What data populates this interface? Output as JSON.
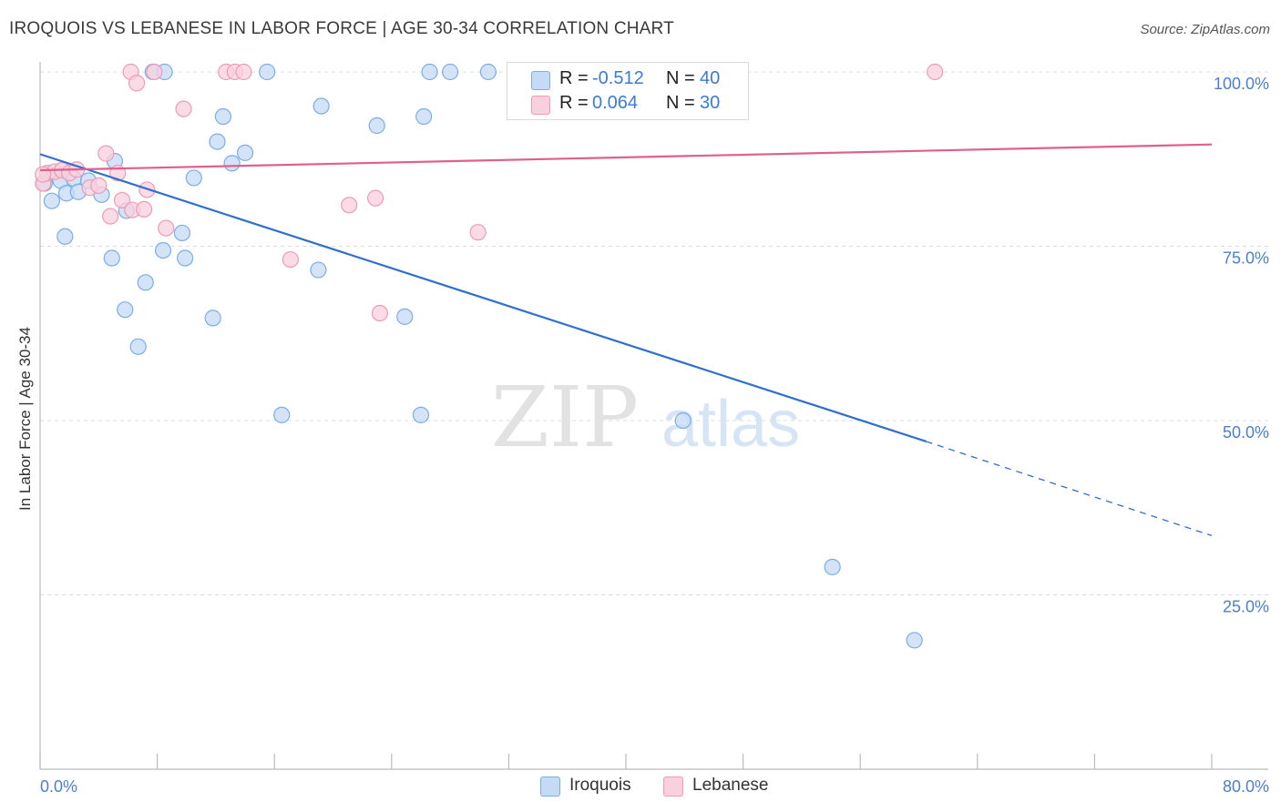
{
  "title": "IROQUOIS VS LEBANESE IN LABOR FORCE | AGE 30-34 CORRELATION CHART",
  "source": "Source: ZipAtlas.com",
  "watermark": {
    "zip": "ZIP",
    "atlas": "atlas"
  },
  "legend": {
    "rows": [
      {
        "r_label": "R =",
        "r_value": "-0.512",
        "n_label": "N =",
        "n_value": "40"
      },
      {
        "r_label": "R =",
        "r_value": "0.064",
        "n_label": "N =",
        "n_value": "30"
      }
    ]
  },
  "chart_data": {
    "type": "scatter",
    "title": "IROQUOIS VS LEBANESE IN LABOR FORCE | AGE 30-34 CORRELATION CHART",
    "xlabel": "",
    "ylabel": "In Labor Force | Age 30-34",
    "xlim": [
      0,
      80
    ],
    "ylim": [
      0,
      103.5
    ],
    "x_tick_labels": [
      "0.0%",
      "80.0%"
    ],
    "y_ticks": [
      25,
      50,
      75,
      100
    ],
    "y_tick_labels": [
      "25.0%",
      "50.0%",
      "75.0%",
      "100.0%"
    ],
    "series": [
      {
        "name": "Iroquois",
        "color": "#7aaee8",
        "fill": "#c5daf5",
        "trend_color": "#2f6fd0",
        "r": -0.512,
        "n": 40,
        "trend": {
          "x0": 0,
          "y0": 88.2,
          "x1": 60.5,
          "y1": 47.0,
          "x_dash_end": 80,
          "y_dash_end": 33.5
        },
        "points": [
          [
            0.3,
            84.0
          ],
          [
            0.8,
            81.5
          ],
          [
            1.4,
            84.4
          ],
          [
            1.8,
            82.6
          ],
          [
            2.3,
            84.7
          ],
          [
            2.6,
            82.8
          ],
          [
            3.3,
            84.4
          ],
          [
            4.2,
            82.4
          ],
          [
            5.1,
            87.2
          ],
          [
            5.9,
            80.1
          ],
          [
            1.7,
            76.4
          ],
          [
            4.9,
            73.3
          ],
          [
            8.4,
            74.4
          ],
          [
            9.7,
            76.9
          ],
          [
            9.9,
            73.3
          ],
          [
            7.2,
            69.8
          ],
          [
            5.8,
            65.9
          ],
          [
            11.8,
            64.7
          ],
          [
            6.7,
            60.6
          ],
          [
            7.7,
            100.0
          ],
          [
            8.5,
            100.0
          ],
          [
            15.5,
            100.0
          ],
          [
            26.6,
            100.0
          ],
          [
            28.0,
            100.0
          ],
          [
            30.6,
            100.0
          ],
          [
            12.5,
            93.6
          ],
          [
            19.2,
            95.1
          ],
          [
            23.0,
            92.3
          ],
          [
            26.2,
            93.6
          ],
          [
            12.1,
            90.0
          ],
          [
            14.0,
            88.4
          ],
          [
            13.1,
            86.9
          ],
          [
            10.5,
            84.8
          ],
          [
            19.0,
            71.6
          ],
          [
            24.9,
            64.9
          ],
          [
            16.5,
            50.8
          ],
          [
            26.0,
            50.8
          ],
          [
            43.9,
            50.0
          ],
          [
            54.1,
            29.0
          ],
          [
            59.7,
            18.5
          ]
        ]
      },
      {
        "name": "Lebanese",
        "color": "#f09ab5",
        "fill": "#f9d0dd",
        "trend_color": "#e0608a",
        "r": 0.064,
        "n": 30,
        "trend": {
          "x0": 0,
          "y0": 85.9,
          "x1": 80,
          "y1": 89.6
        },
        "points": [
          [
            0.2,
            84.0
          ],
          [
            0.5,
            85.5
          ],
          [
            1.0,
            85.7
          ],
          [
            1.5,
            85.9
          ],
          [
            2.0,
            85.5
          ],
          [
            2.5,
            86.0
          ],
          [
            3.4,
            83.4
          ],
          [
            4.0,
            83.7
          ],
          [
            4.5,
            88.3
          ],
          [
            5.3,
            85.5
          ],
          [
            5.6,
            81.6
          ],
          [
            6.3,
            80.2
          ],
          [
            7.1,
            80.3
          ],
          [
            7.3,
            83.1
          ],
          [
            8.6,
            77.6
          ],
          [
            4.8,
            79.3
          ],
          [
            6.2,
            100.0
          ],
          [
            6.6,
            98.4
          ],
          [
            7.8,
            100.0
          ],
          [
            9.8,
            94.7
          ],
          [
            12.7,
            100.0
          ],
          [
            13.3,
            100.0
          ],
          [
            13.9,
            100.0
          ],
          [
            17.1,
            73.1
          ],
          [
            21.1,
            80.9
          ],
          [
            22.9,
            81.9
          ],
          [
            23.2,
            65.4
          ],
          [
            29.9,
            77.0
          ],
          [
            61.1,
            100.0
          ],
          [
            0.2,
            85.3
          ]
        ]
      }
    ],
    "gridlines": true,
    "legend_position": "top-center"
  }
}
